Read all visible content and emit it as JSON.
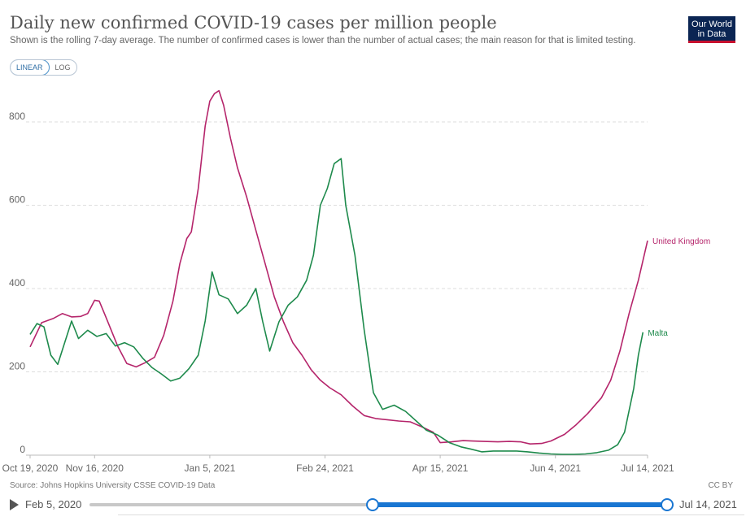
{
  "header": {
    "title": "Daily new confirmed COVID-19 cases per million people",
    "subtitle": "Shown is the rolling 7-day average. The number of confirmed cases is lower than the number of actual cases; the main reason for that is limited testing.",
    "logo_line1": "Our World",
    "logo_line2": "in Data",
    "logo_color": "#0b2553"
  },
  "scale_toggle": {
    "linear_label": "LINEAR",
    "log_label": "LOG",
    "selected": "LINEAR"
  },
  "footer": {
    "source": "Source: Johns Hopkins University CSSE COVID-19 Data",
    "license": "CC BY",
    "timeline_start": "Feb 5, 2020",
    "timeline_end": "Jul 14, 2021"
  },
  "chart_data": {
    "type": "line",
    "title": "Daily new confirmed COVID-19 cases per million people",
    "x_tick_labels": [
      "Oct 19, 2020",
      "Nov 16, 2020",
      "Jan 5, 2021",
      "Feb 24, 2021",
      "Apr 15, 2021",
      "Jun 4, 2021",
      "Jul 14, 2021"
    ],
    "x_tick_days": [
      0,
      28,
      78,
      128,
      178,
      228,
      268
    ],
    "y_ticks": [
      0,
      200,
      400,
      600,
      800
    ],
    "ylim": [
      0,
      880
    ],
    "xlim_days": [
      0,
      268
    ],
    "grid": "horizontal dashed",
    "series": [
      {
        "name": "United Kingdom",
        "color": "#b5256b",
        "points": [
          [
            0,
            260
          ],
          [
            5,
            318
          ],
          [
            10,
            328
          ],
          [
            14,
            340
          ],
          [
            18,
            332
          ],
          [
            22,
            333
          ],
          [
            25,
            340
          ],
          [
            28,
            372
          ],
          [
            30,
            370
          ],
          [
            33,
            330
          ],
          [
            38,
            262
          ],
          [
            42,
            220
          ],
          [
            46,
            212
          ],
          [
            50,
            222
          ],
          [
            54,
            235
          ],
          [
            58,
            288
          ],
          [
            62,
            370
          ],
          [
            65,
            460
          ],
          [
            68,
            520
          ],
          [
            70,
            536
          ],
          [
            73,
            640
          ],
          [
            76,
            790
          ],
          [
            78,
            850
          ],
          [
            80,
            868
          ],
          [
            82,
            875
          ],
          [
            84,
            840
          ],
          [
            87,
            760
          ],
          [
            90,
            690
          ],
          [
            94,
            620
          ],
          [
            98,
            540
          ],
          [
            102,
            460
          ],
          [
            106,
            380
          ],
          [
            110,
            320
          ],
          [
            114,
            270
          ],
          [
            118,
            240
          ],
          [
            122,
            205
          ],
          [
            126,
            180
          ],
          [
            130,
            162
          ],
          [
            135,
            145
          ],
          [
            140,
            118
          ],
          [
            145,
            95
          ],
          [
            150,
            88
          ],
          [
            155,
            85
          ],
          [
            160,
            82
          ],
          [
            165,
            80
          ],
          [
            170,
            68
          ],
          [
            175,
            55
          ],
          [
            178,
            30
          ],
          [
            183,
            32
          ],
          [
            188,
            35
          ],
          [
            192,
            34
          ],
          [
            197,
            33
          ],
          [
            203,
            32
          ],
          [
            208,
            33
          ],
          [
            213,
            32
          ],
          [
            217,
            27
          ],
          [
            222,
            28
          ],
          [
            226,
            34
          ],
          [
            232,
            50
          ],
          [
            237,
            73
          ],
          [
            242,
            100
          ],
          [
            248,
            138
          ],
          [
            252,
            180
          ],
          [
            256,
            250
          ],
          [
            260,
            340
          ],
          [
            264,
            420
          ],
          [
            268,
            515
          ]
        ]
      },
      {
        "name": "Malta",
        "color": "#1e8a4c",
        "points": [
          [
            0,
            290
          ],
          [
            3,
            316
          ],
          [
            6,
            308
          ],
          [
            9,
            240
          ],
          [
            12,
            218
          ],
          [
            15,
            270
          ],
          [
            18,
            322
          ],
          [
            21,
            280
          ],
          [
            25,
            300
          ],
          [
            29,
            285
          ],
          [
            33,
            292
          ],
          [
            37,
            262
          ],
          [
            41,
            270
          ],
          [
            45,
            260
          ],
          [
            49,
            232
          ],
          [
            53,
            210
          ],
          [
            57,
            195
          ],
          [
            61,
            178
          ],
          [
            65,
            185
          ],
          [
            69,
            208
          ],
          [
            73,
            240
          ],
          [
            76,
            322
          ],
          [
            79,
            440
          ],
          [
            82,
            385
          ],
          [
            86,
            375
          ],
          [
            90,
            340
          ],
          [
            94,
            360
          ],
          [
            98,
            400
          ],
          [
            101,
            320
          ],
          [
            104,
            250
          ],
          [
            108,
            320
          ],
          [
            112,
            360
          ],
          [
            116,
            380
          ],
          [
            120,
            420
          ],
          [
            123,
            480
          ],
          [
            126,
            600
          ],
          [
            129,
            640
          ],
          [
            132,
            700
          ],
          [
            135,
            712
          ],
          [
            137,
            600
          ],
          [
            141,
            480
          ],
          [
            145,
            300
          ],
          [
            149,
            150
          ],
          [
            153,
            110
          ],
          [
            158,
            120
          ],
          [
            163,
            105
          ],
          [
            168,
            80
          ],
          [
            172,
            60
          ],
          [
            177,
            48
          ],
          [
            182,
            30
          ],
          [
            187,
            20
          ],
          [
            191,
            15
          ],
          [
            196,
            8
          ],
          [
            201,
            10
          ],
          [
            206,
            10
          ],
          [
            211,
            10
          ],
          [
            216,
            8
          ],
          [
            221,
            5
          ],
          [
            226,
            3
          ],
          [
            231,
            2
          ],
          [
            236,
            2
          ],
          [
            241,
            3
          ],
          [
            246,
            6
          ],
          [
            251,
            12
          ],
          [
            255,
            25
          ],
          [
            258,
            55
          ],
          [
            262,
            160
          ],
          [
            264,
            240
          ],
          [
            266,
            295
          ]
        ]
      }
    ]
  }
}
